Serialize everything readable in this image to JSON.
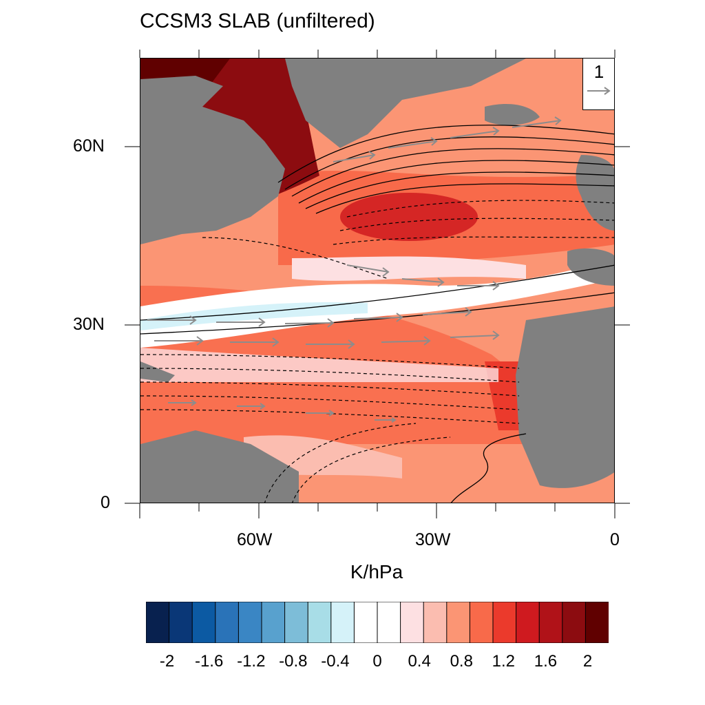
{
  "title": "CCSM3 SLAB (unfiltered)",
  "units_label": "K/hPa",
  "map": {
    "region": "North Atlantic",
    "lon_range": [
      -80,
      0
    ],
    "lat_range": [
      0,
      75
    ],
    "x_ticks": [
      {
        "value": -60,
        "label": "60W"
      },
      {
        "value": -30,
        "label": "30W"
      },
      {
        "value": 0,
        "label": "0"
      }
    ],
    "y_ticks": [
      {
        "value": 60,
        "label": "60N"
      },
      {
        "value": 30,
        "label": "30N"
      },
      {
        "value": 0,
        "label": "0"
      }
    ],
    "land_color": "#808080",
    "field_shaded": "regression (K/hPa), red positive / blue negative",
    "contours": "solid positive, dashed negative",
    "vectors_color": "#8c8c8c"
  },
  "reference_vector": {
    "label": "1",
    "color": "#8c8c8c"
  },
  "colorbar": {
    "colors": [
      "#08214f",
      "#0a3777",
      "#0c5aa3",
      "#2a73b8",
      "#3a86c4",
      "#58a1ce",
      "#7dbdd8",
      "#a8dde7",
      "#d5f2f9",
      "#ffffff",
      "#ffffff",
      "#fde0e2",
      "#fbbdb0",
      "#fb9574",
      "#f86a4a",
      "#eb3a2c",
      "#cf1a1f",
      "#b01218",
      "#8c0c10",
      "#600000"
    ],
    "labels": [
      "-2",
      "-1.6",
      "-1.2",
      "-0.8",
      "-0.4",
      "0",
      "0.4",
      "0.8",
      "1.2",
      "1.6",
      "2"
    ]
  }
}
